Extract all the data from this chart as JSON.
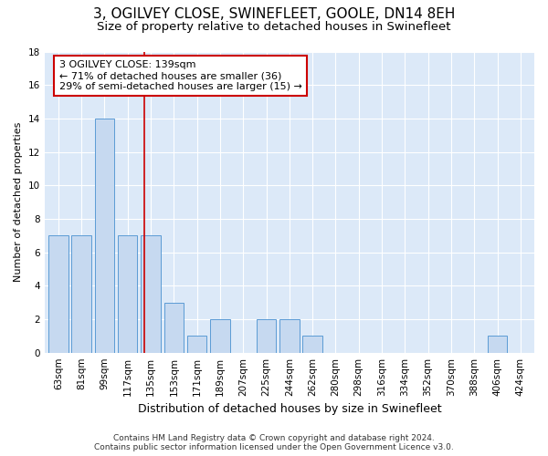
{
  "title": "3, OGILVEY CLOSE, SWINEFLEET, GOOLE, DN14 8EH",
  "subtitle": "Size of property relative to detached houses in Swinefleet",
  "xlabel": "Distribution of detached houses by size in Swinefleet",
  "ylabel": "Number of detached properties",
  "categories": [
    "63sqm",
    "81sqm",
    "99sqm",
    "117sqm",
    "135sqm",
    "153sqm",
    "171sqm",
    "189sqm",
    "207sqm",
    "225sqm",
    "244sqm",
    "262sqm",
    "280sqm",
    "298sqm",
    "316sqm",
    "334sqm",
    "352sqm",
    "370sqm",
    "388sqm",
    "406sqm",
    "424sqm"
  ],
  "values": [
    7,
    7,
    14,
    7,
    7,
    3,
    1,
    2,
    0,
    2,
    2,
    1,
    0,
    0,
    0,
    0,
    0,
    0,
    0,
    1,
    0
  ],
  "bar_color": "#c6d9f0",
  "bar_edge_color": "#5b9bd5",
  "subject_line_color": "#cc0000",
  "annotation_line1": "3 OGILVEY CLOSE: 139sqm",
  "annotation_line2": "← 71% of detached houses are smaller (36)",
  "annotation_line3": "29% of semi-detached houses are larger (15) →",
  "annotation_box_color": "#cc0000",
  "ylim": [
    0,
    18
  ],
  "yticks": [
    0,
    2,
    4,
    6,
    8,
    10,
    12,
    14,
    16,
    18
  ],
  "background_color": "#dce9f8",
  "footer_line1": "Contains HM Land Registry data © Crown copyright and database right 2024.",
  "footer_line2": "Contains public sector information licensed under the Open Government Licence v3.0.",
  "title_fontsize": 11,
  "subtitle_fontsize": 9.5,
  "xlabel_fontsize": 9,
  "ylabel_fontsize": 8,
  "tick_fontsize": 7.5,
  "annotation_fontsize": 8,
  "footer_fontsize": 6.5
}
